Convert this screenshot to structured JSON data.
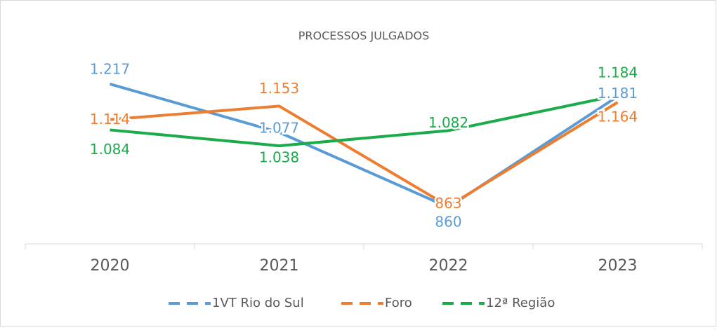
{
  "chart_data": {
    "type": "line",
    "title": "PROCESSOS JULGADOS",
    "categories": [
      "2020",
      "2021",
      "2022",
      "2023"
    ],
    "series": [
      {
        "name": "1VT Rio do Sul",
        "color": "#5b9bd5",
        "values": [
          1217,
          1077,
          860,
          1181
        ],
        "value_labels": [
          "1.217",
          "1.077",
          "860",
          "1.181"
        ]
      },
      {
        "name": "Foro",
        "color": "#ed7d31",
        "values": [
          1114,
          1153,
          863,
          1164
        ],
        "value_labels": [
          "1.114",
          "1.153",
          "863",
          "1.164"
        ]
      },
      {
        "name": "12ª Região",
        "color": "#1aab4b",
        "values": [
          1084,
          1038,
          1082,
          1184
        ],
        "value_labels": [
          "1.084",
          "1.038",
          "1.082",
          "1.184"
        ]
      }
    ],
    "ylim": [
      750,
      1300
    ],
    "legend": "bottom"
  }
}
